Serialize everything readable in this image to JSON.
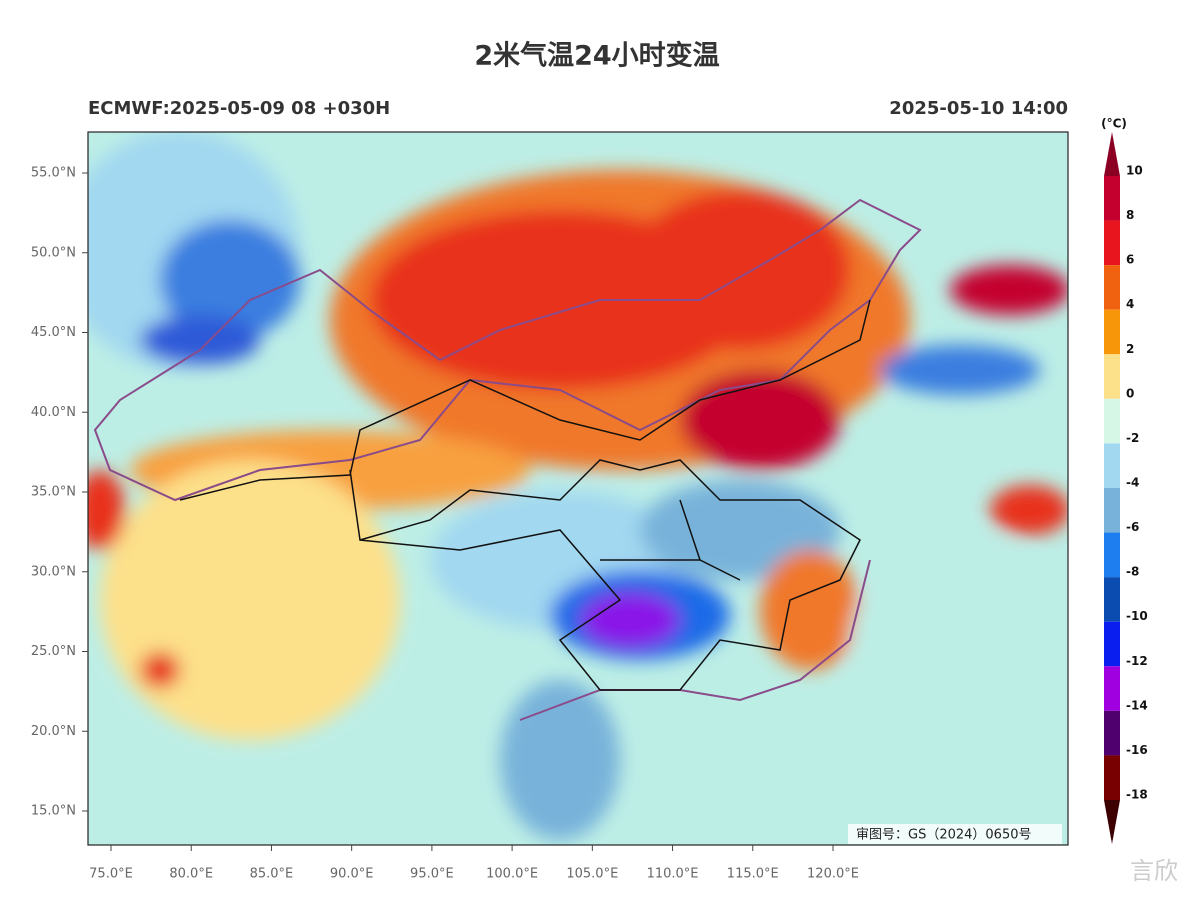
{
  "header": {
    "title": "2米气温24小时变温",
    "left": "ECMWF:2025-05-09 08 +030H",
    "right": "2025-05-10 14:00"
  },
  "map": {
    "lat_ticks": [
      {
        "value": 55,
        "label": "55.0°N"
      },
      {
        "value": 50,
        "label": "50.0°N"
      },
      {
        "value": 45,
        "label": "45.0°N"
      },
      {
        "value": 40,
        "label": "40.0°N"
      },
      {
        "value": 35,
        "label": "35.0°N"
      },
      {
        "value": 30,
        "label": "30.0°N"
      },
      {
        "value": 25,
        "label": "25.0°N"
      },
      {
        "value": 20,
        "label": "20.0°N"
      },
      {
        "value": 15,
        "label": "15.0°N"
      }
    ],
    "lon_ticks": [
      {
        "value": 75,
        "label": "75.0°E"
      },
      {
        "value": 80,
        "label": "80.0°E"
      },
      {
        "value": 85,
        "label": "85.0°E"
      },
      {
        "value": 90,
        "label": "90.0°E"
      },
      {
        "value": 95,
        "label": "95.0°E"
      },
      {
        "value": 100,
        "label": "100.0°E"
      },
      {
        "value": 105,
        "label": "105.0°E"
      },
      {
        "value": 110,
        "label": "110.0°E"
      },
      {
        "value": 115,
        "label": "115.0°E"
      },
      {
        "value": 120,
        "label": "120.0°E"
      }
    ],
    "note": "审图号：GS（2024）0650号"
  },
  "colorbar": {
    "unit": "(°C)",
    "levels": [
      10,
      8,
      6,
      4,
      2,
      0,
      -2,
      -4,
      -6,
      -8,
      -10,
      -12,
      -14,
      -16,
      -18
    ],
    "colors": [
      "#8b0022",
      "#c4002e",
      "#e8141e",
      "#f0620f",
      "#f8960a",
      "#fde08a",
      "#d6f7e6",
      "#a2d8f0",
      "#78b2da",
      "#1e7ef0",
      "#0a4cb0",
      "#0a1ef0",
      "#a000e0",
      "#50006e",
      "#780000",
      "#3c0000"
    ]
  },
  "watermark": "言欣"
}
